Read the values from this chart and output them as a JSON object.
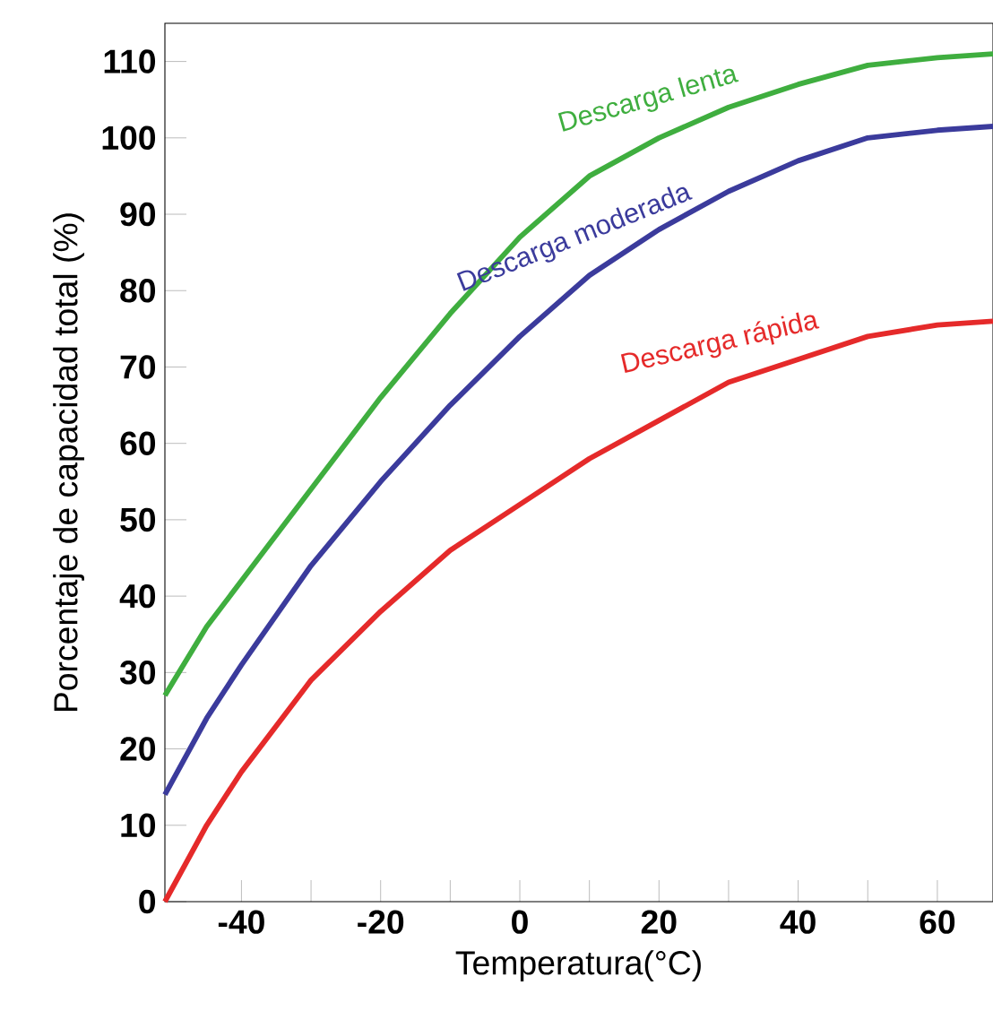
{
  "chart_data": {
    "type": "line",
    "xlabel": "Temperatura(°C)",
    "ylabel": "Porcentaje de capacidad total (%)",
    "x": [
      -51,
      -45,
      -40,
      -30,
      -20,
      -10,
      0,
      10,
      20,
      30,
      40,
      50,
      60,
      68
    ],
    "series": [
      {
        "name": "Descarga lenta",
        "color": "#3fae3f",
        "values": [
          27,
          36,
          42,
          54,
          66,
          77,
          87,
          95,
          100,
          104,
          107,
          109.5,
          110.5,
          111
        ]
      },
      {
        "name": "Descarga moderada",
        "color": "#3b3b9c",
        "values": [
          14,
          24,
          31,
          44,
          55,
          65,
          74,
          82,
          88,
          93,
          97,
          100,
          101,
          101.5
        ]
      },
      {
        "name": "Descarga rápida",
        "color": "#e52a2a",
        "values": [
          0,
          10,
          17,
          29,
          38,
          46,
          52,
          58,
          63,
          68,
          71,
          74,
          75.5,
          76
        ]
      }
    ],
    "xlim": [
      -51,
      68
    ],
    "ylim": [
      0,
      115
    ],
    "xticks": [
      -40,
      {
        "value": -30,
        "label": null
      },
      -20,
      {
        "value": -10,
        "label": null
      },
      0,
      {
        "value": 10,
        "label": null
      },
      20,
      {
        "value": 30,
        "label": null
      },
      40,
      {
        "value": 50,
        "label": null
      },
      60
    ],
    "yticks": [
      0,
      10,
      20,
      30,
      40,
      50,
      60,
      70,
      80,
      90,
      100,
      110
    ],
    "grid": false,
    "legend": false,
    "marker": "none",
    "line_style": "solid"
  }
}
